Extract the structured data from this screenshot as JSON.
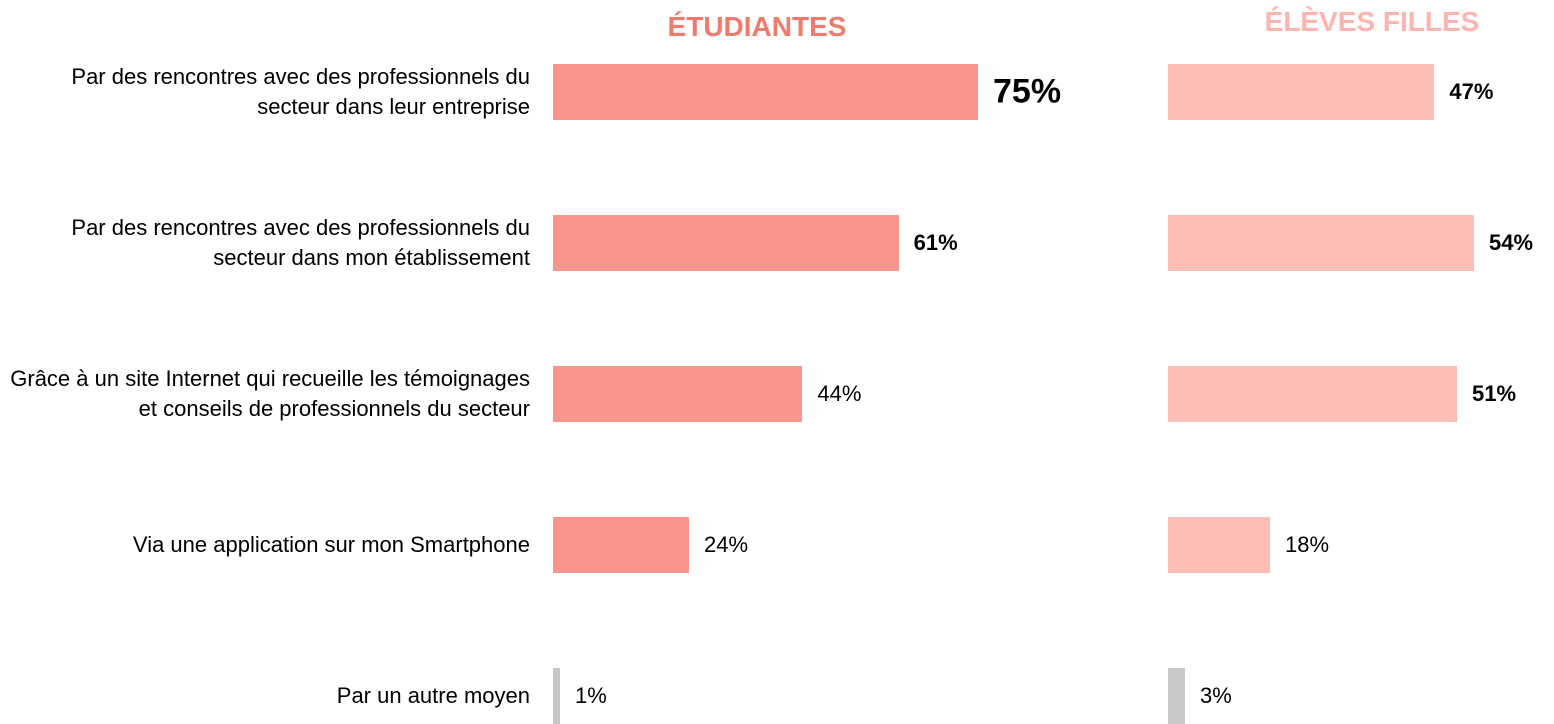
{
  "chart_data": {
    "type": "bar",
    "orientation": "horizontal",
    "categories": [
      "Par des rencontres avec des professionnels du secteur dans leur entreprise",
      "Par des rencontres avec des professionnels du secteur dans mon établissement",
      "Grâce à un site Internet qui recueille les témoignages et conseils de professionnels du secteur",
      "Via une application sur mon Smartphone",
      "Par un autre moyen"
    ],
    "series": [
      {
        "name": "ÉTUDIANTES",
        "color": "#f07a6c",
        "colors": [
          "#f9958a",
          "#f9958a",
          "#f9958a",
          "#f9958a",
          "#c8c8c8"
        ],
        "values": [
          75,
          61,
          44,
          24,
          1
        ],
        "value_labels": [
          "75%",
          "61%",
          "44%",
          "24%",
          "1%"
        ],
        "label_emphasis": [
          "strong",
          "bold",
          "normal",
          "normal",
          "normal"
        ]
      },
      {
        "name": "ÉLÈVES FILLES",
        "color": "#fbb5ae",
        "colors": [
          "#fcbdb6",
          "#fcbdb6",
          "#fcbdb6",
          "#fcbdb6",
          "#c8c8c8"
        ],
        "values": [
          47,
          54,
          51,
          18,
          3
        ],
        "value_labels": [
          "47%",
          "54%",
          "51%",
          "18%",
          "3%"
        ],
        "label_emphasis": [
          "bold",
          "bold",
          "bold",
          "normal",
          "normal"
        ]
      }
    ]
  }
}
